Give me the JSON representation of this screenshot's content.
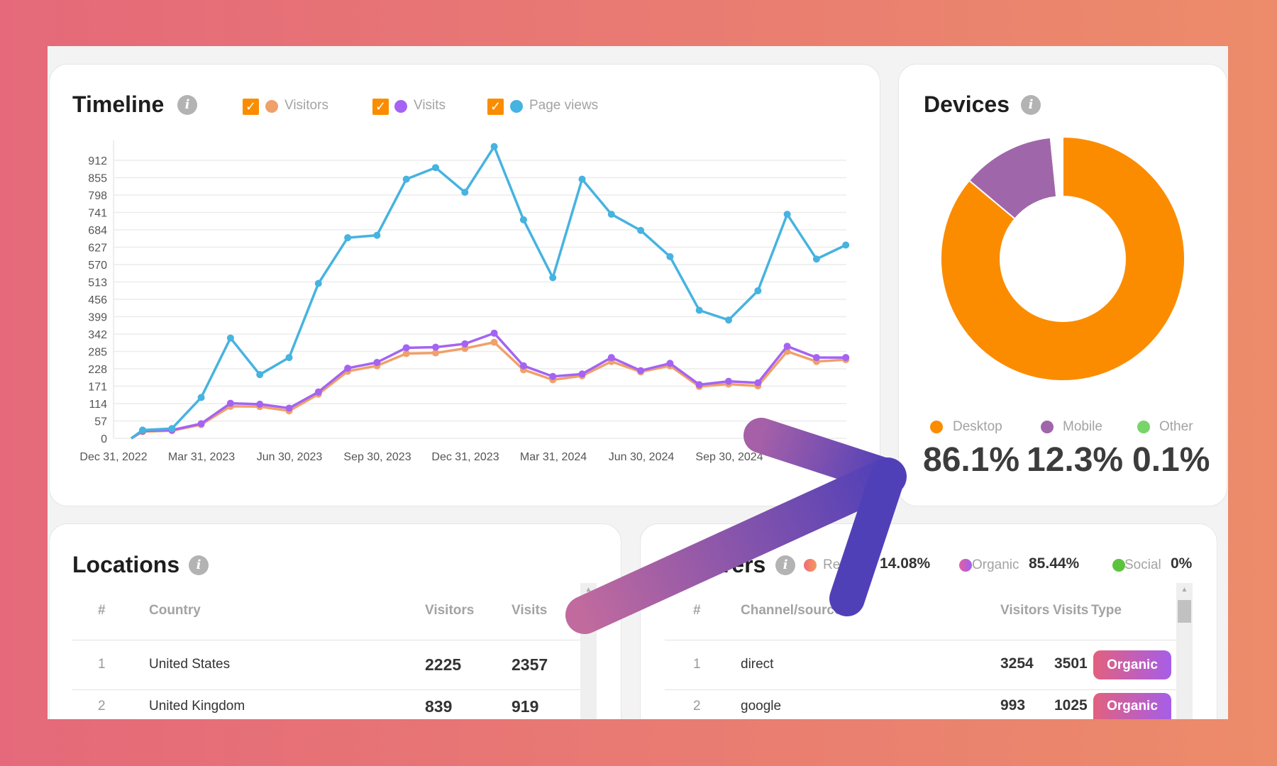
{
  "timeline": {
    "title": "Timeline",
    "info_icon": "i",
    "legend": [
      {
        "label": "Visitors",
        "color": "#f0a06a",
        "checked": true
      },
      {
        "label": "Visits",
        "color": "#a463f2",
        "checked": true
      },
      {
        "label": "Page views",
        "color": "#46b3e0",
        "checked": true
      }
    ]
  },
  "chart_data": {
    "type": "line",
    "title": "Timeline",
    "xlabel": "",
    "ylabel": "",
    "ylim": [
      0,
      912
    ],
    "y_ticks": [
      "0",
      "57",
      "114",
      "171",
      "228",
      "285",
      "342",
      "399",
      "456",
      "513",
      "570",
      "627",
      "684",
      "741",
      "798",
      "855",
      "912"
    ],
    "x_tick_labels": [
      "Dec 31, 2022",
      "Mar 31, 2023",
      "Jun 30, 2023",
      "Sep 30, 2023",
      "Dec 31, 2023",
      "Mar 31, 2024",
      "Jun 30, 2024",
      "Sep 30, 2024",
      "Dec 31, 2024"
    ],
    "grid": true,
    "series": [
      {
        "name": "Page views",
        "color": "#46b3e0",
        "values": [
          27,
          32,
          134,
          329,
          209,
          265,
          508,
          658,
          666,
          850,
          888,
          807,
          957,
          717,
          527,
          850,
          735,
          682,
          596,
          420,
          388,
          484,
          735,
          588,
          634
        ]
      },
      {
        "name": "Visits",
        "color": "#a463f2",
        "values": [
          24,
          27,
          48,
          115,
          112,
          99,
          152,
          230,
          249,
          297,
          299,
          310,
          345,
          238,
          203,
          211,
          265,
          222,
          246,
          176,
          187,
          182,
          302,
          265,
          265
        ]
      },
      {
        "name": "Visitors",
        "color": "#f0a06a",
        "values": [
          22,
          25,
          45,
          105,
          104,
          90,
          145,
          220,
          238,
          278,
          280,
          295,
          315,
          225,
          192,
          205,
          252,
          218,
          238,
          170,
          178,
          172,
          285,
          252,
          258
        ]
      }
    ]
  },
  "devices": {
    "title": "Devices",
    "info_icon": "i",
    "items": [
      {
        "label": "Desktop",
        "value": "86.1%",
        "share": 86.1,
        "color": "#fb8c00"
      },
      {
        "label": "Mobile",
        "value": "12.3%",
        "share": 12.3,
        "color": "#a066aa"
      },
      {
        "label": "Other",
        "value": "0.1%",
        "share": 0.1,
        "color": "#79d46a"
      }
    ]
  },
  "locations": {
    "title": "Locations",
    "info_icon": "i",
    "headers": [
      "#",
      "Country",
      "Visitors",
      "Visits"
    ],
    "rows": [
      [
        "1",
        "United States",
        "2225",
        "2357"
      ],
      [
        "2",
        "United Kingdom",
        "839",
        "919"
      ]
    ]
  },
  "referrers": {
    "title": "Referrers",
    "info_icon": "i",
    "legend": [
      {
        "label": "Referral",
        "value": "14.08%",
        "color": "#ee7a68"
      },
      {
        "label": "Organic",
        "value": "85.44%",
        "color": "#b85fd8"
      },
      {
        "label": "Social",
        "value": "0%",
        "color": "#5cc43c"
      }
    ],
    "headers": [
      "#",
      "Channel/source",
      "Visitors",
      "Visits",
      "Type"
    ],
    "rows": [
      [
        "1",
        "direct",
        "3254",
        "3501",
        "Organic"
      ],
      [
        "2",
        "google",
        "993",
        "1025",
        "Organic"
      ]
    ]
  }
}
